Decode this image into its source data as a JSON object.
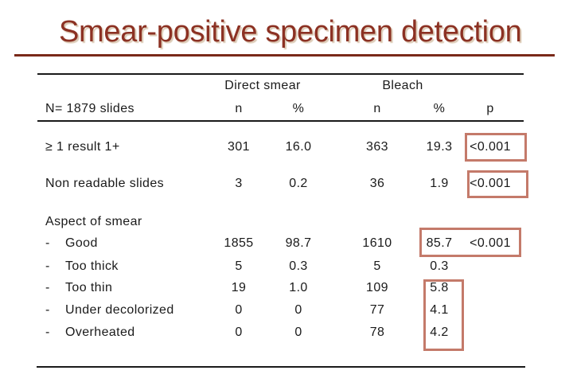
{
  "slide": {
    "title": "Smear-positive specimen detection",
    "title_color": "#8C3123",
    "rule_color": "#7A291A",
    "highlight_border_color": "#C47A6A"
  },
  "table": {
    "group_headers": [
      {
        "label": "Direct smear"
      },
      {
        "label": "Bleach"
      }
    ],
    "row_header": {
      "label": "N= 1879 slides",
      "columns": [
        "n",
        "%",
        "n",
        "%",
        "p"
      ]
    },
    "rows": [
      {
        "label": "≥ 1 result 1+",
        "bullet": false,
        "section": false,
        "cells": [
          "301",
          "16.0",
          "363",
          "19.3",
          "<0.001"
        ]
      },
      {
        "label": "Non readable slides",
        "bullet": false,
        "section": false,
        "cells": [
          "3",
          "0.2",
          "36",
          "1.9",
          "<0.001"
        ]
      },
      {
        "label": "Aspect of smear",
        "bullet": false,
        "section": true,
        "cells": [
          "",
          "",
          "",
          "",
          ""
        ]
      },
      {
        "label": "Good",
        "bullet": true,
        "section": false,
        "cells": [
          "1855",
          "98.7",
          "1610",
          "85.7",
          "<0.001"
        ]
      },
      {
        "label": "Too thick",
        "bullet": true,
        "section": false,
        "cells": [
          "5",
          "0.3",
          "5",
          "0.3",
          ""
        ]
      },
      {
        "label": "Too thin",
        "bullet": true,
        "section": false,
        "cells": [
          "19",
          "1.0",
          "109",
          "5.8",
          ""
        ]
      },
      {
        "label": "Under decolorized",
        "bullet": true,
        "section": false,
        "cells": [
          "0",
          "0",
          "77",
          "4.1",
          ""
        ]
      },
      {
        "label": "Overheated",
        "bullet": true,
        "section": false,
        "cells": [
          "0",
          "0",
          "78",
          "4.2",
          ""
        ]
      }
    ],
    "bullet_char": "-"
  }
}
